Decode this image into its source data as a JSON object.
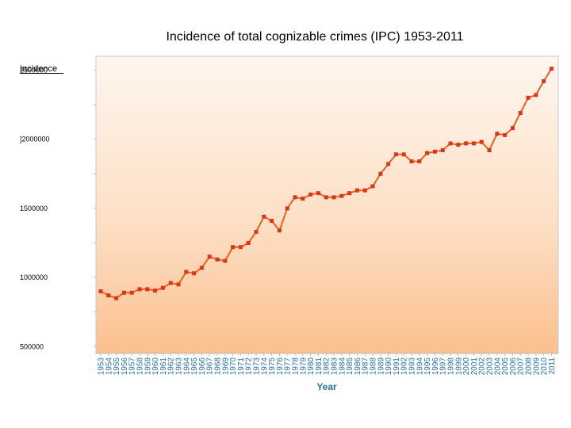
{
  "chart_data": {
    "type": "line",
    "title": "Incidence of total cognizable crimes (IPC) 1953-2011",
    "ylabel": "Incidence",
    "xlabel": "Year",
    "y_tick_labels": [
      "2500000",
      "]2000000",
      "1500000",
      "1000000",
      "500000"
    ],
    "y_tick_values": [
      2500000,
      2000000,
      1500000,
      1000000,
      500000
    ],
    "ylim": [
      450000,
      2600000
    ],
    "grid": false,
    "colors": {
      "line": "#e8621c",
      "marker": "#d9361a",
      "plot_top": "#fff6ef",
      "plot_bottom": "#fbc08e",
      "axis_text": "#2a6fa8"
    },
    "x": [
      "1953",
      "1954",
      "1955",
      "1956",
      "1957",
      "1958",
      "1959",
      "1960",
      "1961",
      "1962",
      "1963",
      "1964",
      "1965",
      "1966",
      "1967",
      "1968",
      "1969",
      "1970",
      "1971",
      "1972",
      "1973",
      "1974",
      "1975",
      "1976",
      "1977",
      "1978",
      "1979",
      "1980",
      "1981",
      "1982",
      "1983",
      "1984",
      "1985",
      "1986",
      "1987",
      "1988",
      "1989",
      "1990",
      "1991",
      "1992",
      "1993",
      "1994",
      "1995",
      "1996",
      "1997",
      "1998",
      "1999",
      "2000",
      "2001",
      "2002",
      "2003",
      "2004",
      "2005",
      "2006",
      "2007",
      "2008",
      "2009",
      "2010",
      "2011"
    ],
    "values": [
      900000,
      870000,
      850000,
      890000,
      890000,
      915000,
      915000,
      905000,
      925000,
      960000,
      950000,
      1040000,
      1030000,
      1070000,
      1150000,
      1130000,
      1120000,
      1220000,
      1220000,
      1250000,
      1330000,
      1440000,
      1410000,
      1340000,
      1500000,
      1580000,
      1570000,
      1600000,
      1610000,
      1580000,
      1580000,
      1590000,
      1610000,
      1630000,
      1630000,
      1660000,
      1750000,
      1820000,
      1890000,
      1890000,
      1840000,
      1840000,
      1900000,
      1910000,
      1920000,
      1970000,
      1960000,
      1970000,
      1970000,
      1980000,
      1920000,
      2040000,
      2030000,
      2080000,
      2190000,
      2300000,
      2320000,
      2420000,
      2510000
    ]
  }
}
